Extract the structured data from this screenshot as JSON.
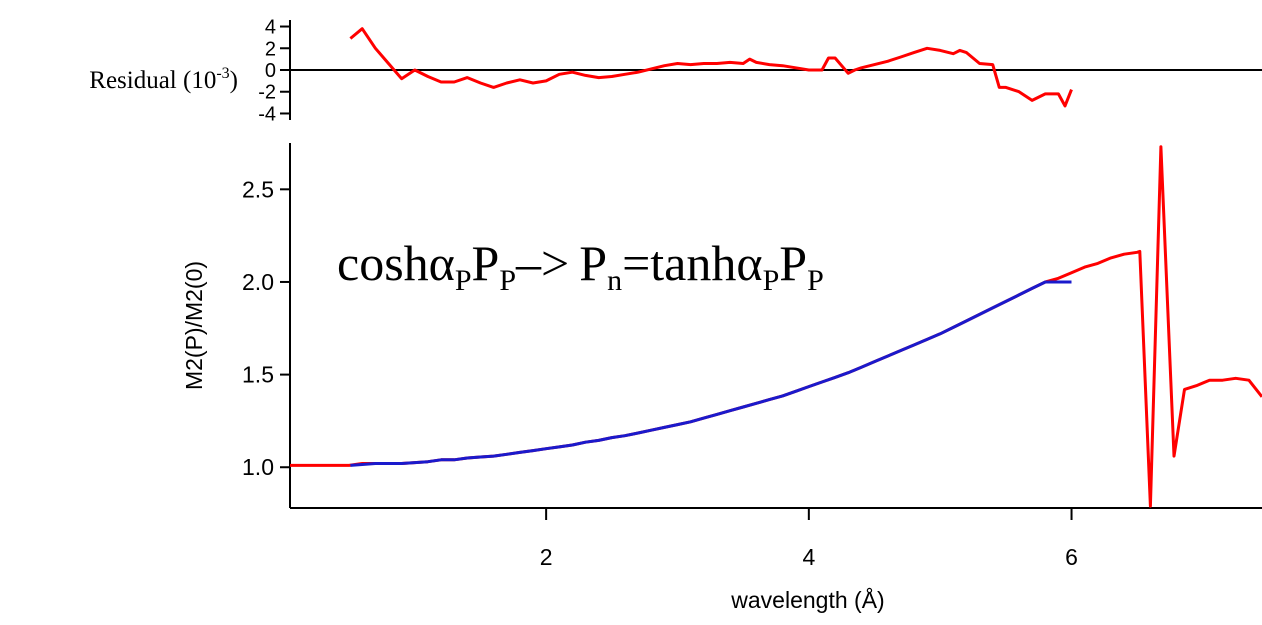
{
  "chart_data": [
    {
      "type": "line",
      "panel": "residual",
      "ylabel": "Residual (10",
      "ylabel_exp": "-3",
      "ylabel_close": ")",
      "xlim": [
        0.05,
        7.45
      ],
      "ylim": [
        -4.6,
        4.6
      ],
      "yticks": [
        4,
        2,
        0,
        -2,
        -4
      ],
      "yticklabels": [
        "4",
        "2",
        "0",
        "-2",
        "-4"
      ],
      "zero_line": true,
      "series": [
        {
          "color": "#ff0000",
          "x": [
            0.51,
            0.6,
            0.7,
            0.8,
            0.9,
            1.0,
            1.1,
            1.2,
            1.3,
            1.4,
            1.5,
            1.6,
            1.7,
            1.8,
            1.9,
            2.0,
            2.1,
            2.2,
            2.3,
            2.4,
            2.5,
            2.6,
            2.7,
            2.8,
            2.9,
            3.0,
            3.1,
            3.2,
            3.3,
            3.4,
            3.5,
            3.55,
            3.6,
            3.7,
            3.8,
            3.9,
            4.0,
            4.1,
            4.15,
            4.2,
            4.3,
            4.35,
            4.4,
            4.5,
            4.6,
            4.7,
            4.8,
            4.9,
            5.0,
            5.1,
            5.15,
            5.2,
            5.3,
            5.4,
            5.45,
            5.5,
            5.6,
            5.7,
            5.8,
            5.9,
            5.95,
            6.0
          ],
          "y": [
            2.9,
            3.8,
            2.0,
            0.6,
            -0.8,
            0.0,
            -0.6,
            -1.1,
            -1.1,
            -0.7,
            -1.2,
            -1.6,
            -1.2,
            -0.9,
            -1.2,
            -1.0,
            -0.4,
            -0.2,
            -0.5,
            -0.7,
            -0.6,
            -0.4,
            -0.2,
            0.1,
            0.4,
            0.6,
            0.5,
            0.6,
            0.6,
            0.7,
            0.6,
            1.0,
            0.7,
            0.5,
            0.4,
            0.2,
            0.0,
            0.0,
            1.1,
            1.1,
            -0.3,
            0.0,
            0.2,
            0.5,
            0.8,
            1.2,
            1.6,
            2.0,
            1.8,
            1.5,
            1.8,
            1.6,
            0.6,
            0.5,
            -1.6,
            -1.6,
            -2.0,
            -2.8,
            -2.2,
            -2.2,
            -3.3,
            -1.8
          ]
        }
      ]
    },
    {
      "type": "line",
      "panel": "main",
      "xlabel": "wavelength (Å)",
      "ylabel": "M2(P)/M2(0)",
      "xlim": [
        0.05,
        7.45
      ],
      "ylim": [
        0.78,
        2.75
      ],
      "xticks": [
        2,
        4,
        6
      ],
      "xticklabels": [
        "2",
        "4",
        "6"
      ],
      "yticks": [
        1.0,
        1.5,
        2.0,
        2.5
      ],
      "yticklabels": [
        "1.0",
        "1.5",
        "2.0",
        "2.5"
      ],
      "annotation": {
        "parts": [
          "cosh",
          "α",
          "P",
          "P",
          "P",
          "–>",
          "P",
          "n",
          "=tanh",
          "α",
          "P",
          "P",
          "P"
        ]
      },
      "series": [
        {
          "color": "#ff0000",
          "x": [
            0.05,
            0.5,
            0.6,
            0.7,
            0.8,
            0.9,
            1.0,
            1.1,
            1.2,
            1.3,
            1.4,
            1.5,
            1.6,
            1.7,
            1.8,
            1.9,
            2.0,
            2.1,
            2.2,
            2.3,
            2.4,
            2.5,
            2.6,
            2.7,
            2.8,
            2.9,
            3.0,
            3.1,
            3.2,
            3.3,
            3.4,
            3.5,
            3.6,
            3.7,
            3.8,
            3.9,
            4.0,
            4.1,
            4.2,
            4.3,
            4.4,
            4.5,
            4.6,
            4.7,
            4.8,
            4.9,
            5.0,
            5.1,
            5.2,
            5.3,
            5.4,
            5.5,
            5.6,
            5.7,
            5.8,
            5.9,
            6.0,
            6.1,
            6.2,
            6.3,
            6.4,
            6.5,
            6.52,
            6.6,
            6.68,
            6.78,
            6.86,
            6.95,
            7.05,
            7.15,
            7.25,
            7.35,
            7.45
          ],
          "y": [
            1.01,
            1.01,
            1.02,
            1.02,
            1.02,
            1.02,
            1.025,
            1.03,
            1.04,
            1.04,
            1.05,
            1.055,
            1.06,
            1.07,
            1.08,
            1.09,
            1.1,
            1.11,
            1.12,
            1.135,
            1.145,
            1.16,
            1.17,
            1.185,
            1.2,
            1.215,
            1.23,
            1.245,
            1.265,
            1.285,
            1.305,
            1.325,
            1.345,
            1.365,
            1.385,
            1.41,
            1.435,
            1.46,
            1.485,
            1.51,
            1.54,
            1.57,
            1.6,
            1.63,
            1.66,
            1.69,
            1.72,
            1.755,
            1.79,
            1.825,
            1.86,
            1.895,
            1.93,
            1.965,
            2.0,
            2.02,
            2.05,
            2.08,
            2.1,
            2.13,
            2.15,
            2.16,
            2.165,
            0.79,
            2.73,
            1.06,
            1.42,
            1.44,
            1.47,
            1.47,
            1.48,
            1.47,
            1.38
          ]
        },
        {
          "color": "#1a1acc",
          "x": [
            0.51,
            0.6,
            0.7,
            0.8,
            0.9,
            1.0,
            1.1,
            1.2,
            1.3,
            1.4,
            1.5,
            1.6,
            1.7,
            1.8,
            1.9,
            2.0,
            2.1,
            2.2,
            2.3,
            2.4,
            2.5,
            2.6,
            2.7,
            2.8,
            2.9,
            3.0,
            3.1,
            3.2,
            3.3,
            3.4,
            3.5,
            3.6,
            3.7,
            3.8,
            3.9,
            4.0,
            4.1,
            4.2,
            4.3,
            4.4,
            4.5,
            4.6,
            4.7,
            4.8,
            4.9,
            5.0,
            5.1,
            5.2,
            5.3,
            5.4,
            5.5,
            5.6,
            5.7,
            5.8,
            5.9,
            6.0
          ],
          "y": [
            1.01,
            1.015,
            1.02,
            1.02,
            1.02,
            1.025,
            1.03,
            1.04,
            1.04,
            1.05,
            1.055,
            1.06,
            1.07,
            1.08,
            1.09,
            1.1,
            1.11,
            1.12,
            1.135,
            1.145,
            1.16,
            1.17,
            1.185,
            1.2,
            1.215,
            1.23,
            1.245,
            1.265,
            1.285,
            1.305,
            1.325,
            1.345,
            1.365,
            1.385,
            1.41,
            1.435,
            1.46,
            1.485,
            1.51,
            1.54,
            1.57,
            1.6,
            1.63,
            1.66,
            1.69,
            1.72,
            1.755,
            1.79,
            1.825,
            1.86,
            1.895,
            1.93,
            1.965,
            2.0,
            2.0,
            2.0
          ]
        }
      ]
    }
  ]
}
